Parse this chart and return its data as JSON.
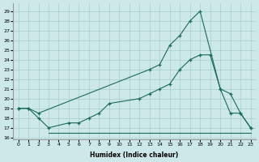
{
  "xlabel": "Humidex (Indice chaleur)",
  "bg_color": "#cce8e8",
  "grid_color": "#aacccc",
  "line_color": "#1a6b5a",
  "xlim": [
    -0.5,
    23.5
  ],
  "ylim": [
    15.8,
    29.8
  ],
  "xticks": [
    0,
    1,
    2,
    3,
    4,
    5,
    6,
    7,
    8,
    9,
    10,
    11,
    12,
    13,
    14,
    15,
    16,
    17,
    18,
    19,
    20,
    21,
    22,
    23
  ],
  "yticks": [
    16,
    17,
    18,
    19,
    20,
    21,
    22,
    23,
    24,
    25,
    26,
    27,
    28,
    29
  ],
  "series1_x": [
    0,
    1,
    2,
    13,
    14,
    15,
    16,
    17,
    18,
    20,
    21,
    22,
    23
  ],
  "series1_y": [
    19,
    19,
    18.5,
    23,
    23.5,
    25.5,
    26.5,
    28,
    29,
    21,
    20.5,
    18.5,
    17
  ],
  "series2_x": [
    0,
    1,
    2,
    3,
    5,
    6,
    7,
    8,
    9,
    12,
    13,
    14,
    15,
    16,
    17,
    18,
    19,
    20,
    21,
    22,
    23
  ],
  "series2_y": [
    19,
    19,
    18,
    17,
    17.5,
    17.5,
    18,
    18.5,
    19.5,
    20,
    20.5,
    21,
    21.5,
    23,
    24,
    24.5,
    24.5,
    21,
    18.5,
    18.5,
    17
  ],
  "series3_x": [
    3,
    4,
    5,
    6,
    7,
    8,
    9,
    10,
    11,
    12,
    13,
    14,
    15,
    16,
    17,
    18,
    19,
    23
  ],
  "series3_y": [
    16.5,
    16.5,
    16.5,
    16.5,
    16.5,
    16.5,
    16.5,
    16.5,
    16.5,
    16.5,
    16.5,
    16.5,
    16.5,
    16.5,
    16.5,
    16.5,
    16.5,
    16.5
  ]
}
